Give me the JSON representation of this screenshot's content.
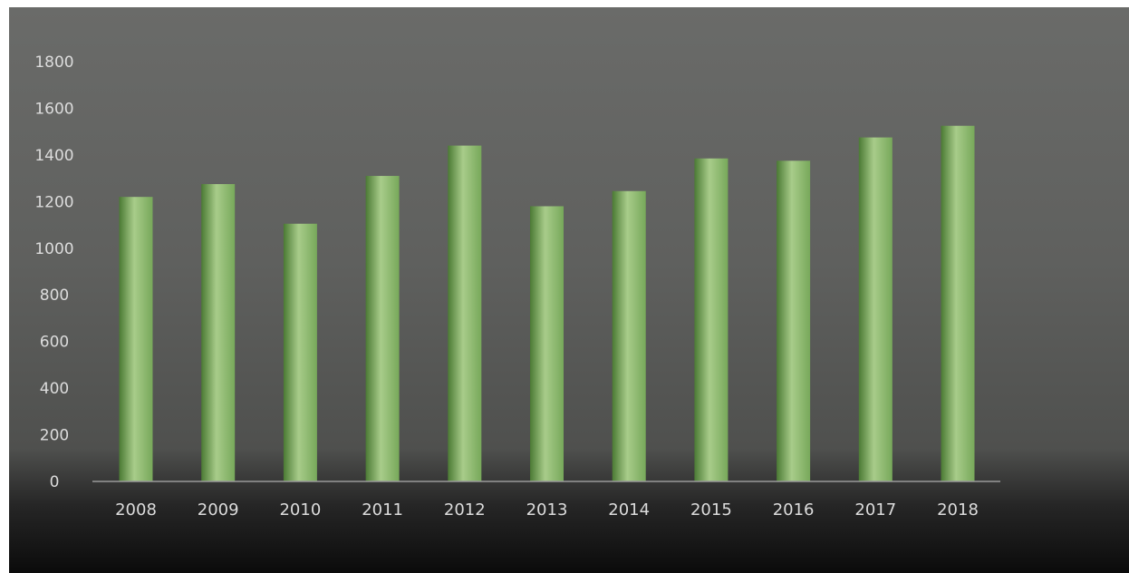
{
  "chart_data": {
    "type": "bar",
    "categories": [
      "2008",
      "2009",
      "2010",
      "2011",
      "2012",
      "2013",
      "2014",
      "2015",
      "2016",
      "2017",
      "2018"
    ],
    "values": [
      1220,
      1275,
      1105,
      1310,
      1440,
      1180,
      1245,
      1385,
      1375,
      1475,
      1525
    ],
    "ylim": [
      0,
      1800
    ],
    "yticks": [
      0,
      200,
      400,
      600,
      800,
      1000,
      1200,
      1400,
      1600,
      1800
    ],
    "grid": false,
    "legend": "none",
    "colors": {
      "bar_light": "#a8cc8a",
      "bar_mid": "#77a85a",
      "bar_dark": "#4b7a34",
      "axis": "#9a9a9a",
      "tick_text": "#dcdcdc"
    }
  }
}
